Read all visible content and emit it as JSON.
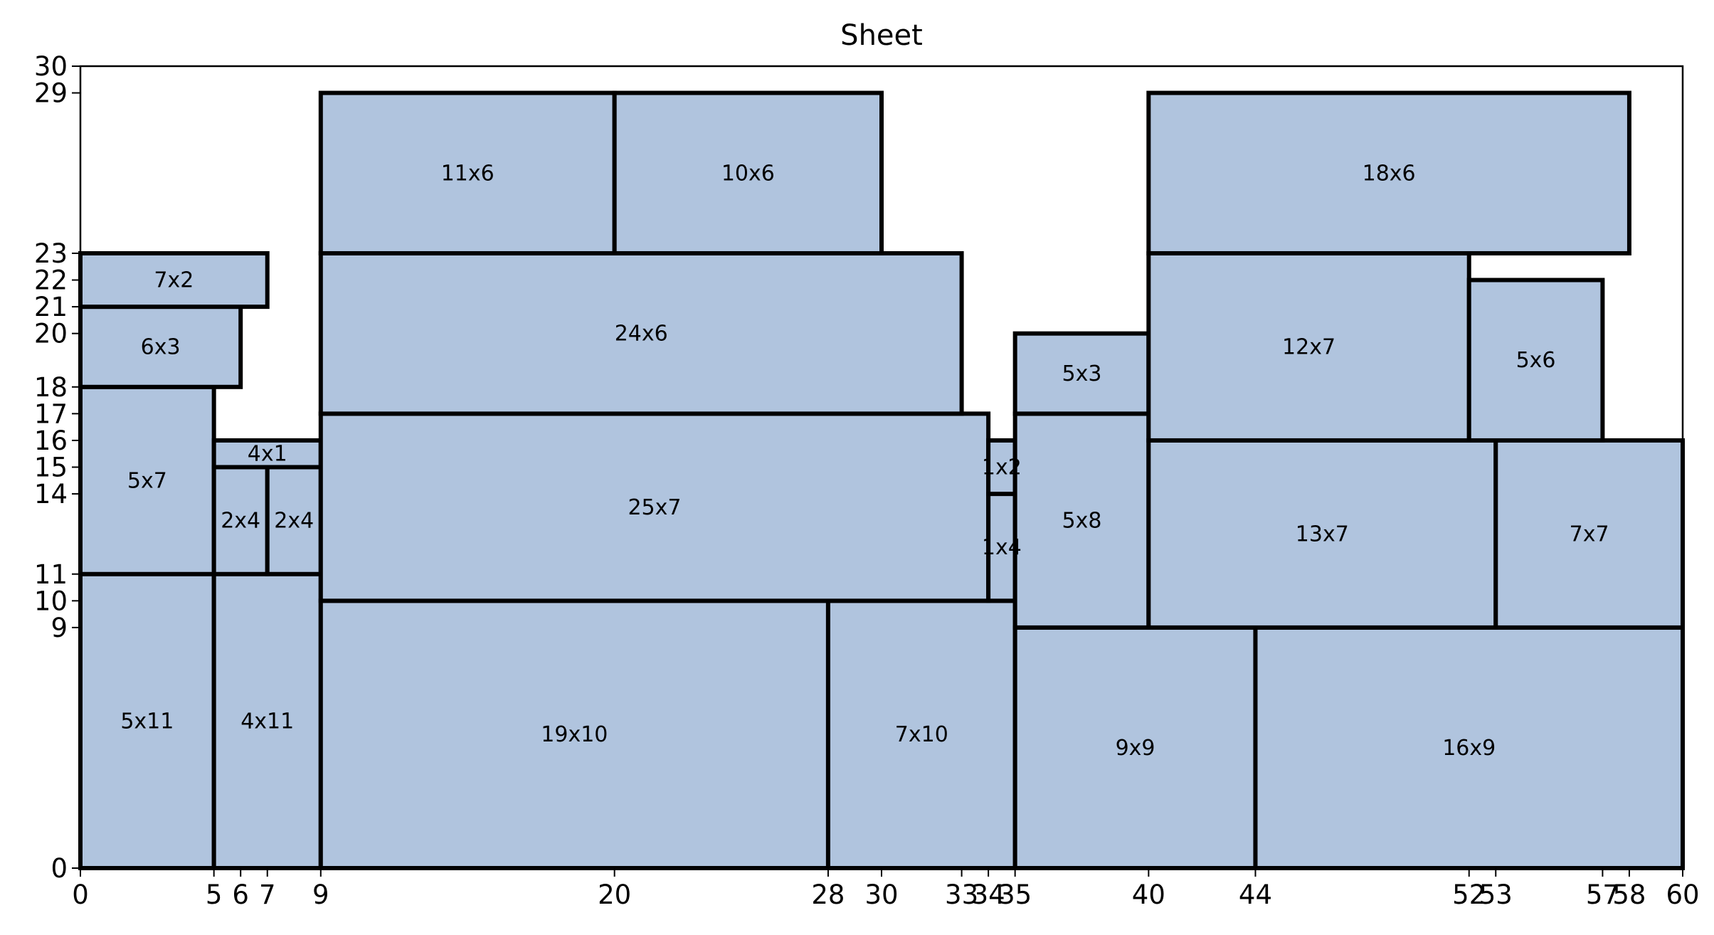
{
  "chart_data": {
    "type": "rectangle_packing",
    "title": "Sheet",
    "sheet": {
      "width": 60,
      "height": 30
    },
    "xlim": [
      0,
      60
    ],
    "ylim": [
      0,
      30
    ],
    "x_ticks": [
      "0",
      "5",
      "6",
      "7",
      "9",
      "20",
      "28",
      "30",
      "33",
      "34",
      "35",
      "40",
      "44",
      "52",
      "53",
      "57",
      "58",
      "60"
    ],
    "y_ticks": [
      "0",
      "9",
      "10",
      "11",
      "14",
      "15",
      "16",
      "17",
      "18",
      "20",
      "21",
      "22",
      "23",
      "29",
      "30"
    ],
    "colors": {
      "piece_fill": "#b0c4de",
      "piece_edge": "#000000"
    },
    "pieces": [
      {
        "label": "5x11",
        "x": 0,
        "y": 0,
        "w": 5,
        "h": 11
      },
      {
        "label": "4x11",
        "x": 5,
        "y": 0,
        "w": 4,
        "h": 11
      },
      {
        "label": "19x10",
        "x": 9,
        "y": 0,
        "w": 19,
        "h": 10
      },
      {
        "label": "7x10",
        "x": 28,
        "y": 0,
        "w": 7,
        "h": 10
      },
      {
        "label": "9x9",
        "x": 35,
        "y": 0,
        "w": 9,
        "h": 9
      },
      {
        "label": "16x9",
        "x": 44,
        "y": 0,
        "w": 16,
        "h": 9
      },
      {
        "label": "5x7",
        "x": 0,
        "y": 11,
        "w": 5,
        "h": 7
      },
      {
        "label": "6x3",
        "x": 0,
        "y": 18,
        "w": 6,
        "h": 3
      },
      {
        "label": "7x2",
        "x": 0,
        "y": 21,
        "w": 7,
        "h": 2
      },
      {
        "label": "2x4",
        "x": 5,
        "y": 11,
        "w": 2,
        "h": 4
      },
      {
        "label": "2x4",
        "x": 7,
        "y": 11,
        "w": 2,
        "h": 4
      },
      {
        "label": "4x1",
        "x": 5,
        "y": 15,
        "w": 4,
        "h": 1
      },
      {
        "label": "25x7",
        "x": 9,
        "y": 10,
        "w": 25,
        "h": 7
      },
      {
        "label": "1x4",
        "x": 34,
        "y": 10,
        "w": 1,
        "h": 4
      },
      {
        "label": "1x2",
        "x": 34,
        "y": 14,
        "w": 1,
        "h": 2
      },
      {
        "label": "24x6",
        "x": 9,
        "y": 17,
        "w": 24,
        "h": 6
      },
      {
        "label": "11x6",
        "x": 9,
        "y": 23,
        "w": 11,
        "h": 6
      },
      {
        "label": "10x6",
        "x": 20,
        "y": 23,
        "w": 10,
        "h": 6
      },
      {
        "label": "5x8",
        "x": 35,
        "y": 9,
        "w": 5,
        "h": 8
      },
      {
        "label": "5x3",
        "x": 35,
        "y": 17,
        "w": 5,
        "h": 3
      },
      {
        "label": "13x7",
        "x": 40,
        "y": 9,
        "w": 13,
        "h": 7
      },
      {
        "label": "7x7",
        "x": 53,
        "y": 9,
        "w": 7,
        "h": 7
      },
      {
        "label": "12x7",
        "x": 40,
        "y": 16,
        "w": 12,
        "h": 7
      },
      {
        "label": "5x6",
        "x": 52,
        "y": 16,
        "w": 5,
        "h": 6
      },
      {
        "label": "18x6",
        "x": 40,
        "y": 23,
        "w": 18,
        "h": 6
      }
    ]
  }
}
